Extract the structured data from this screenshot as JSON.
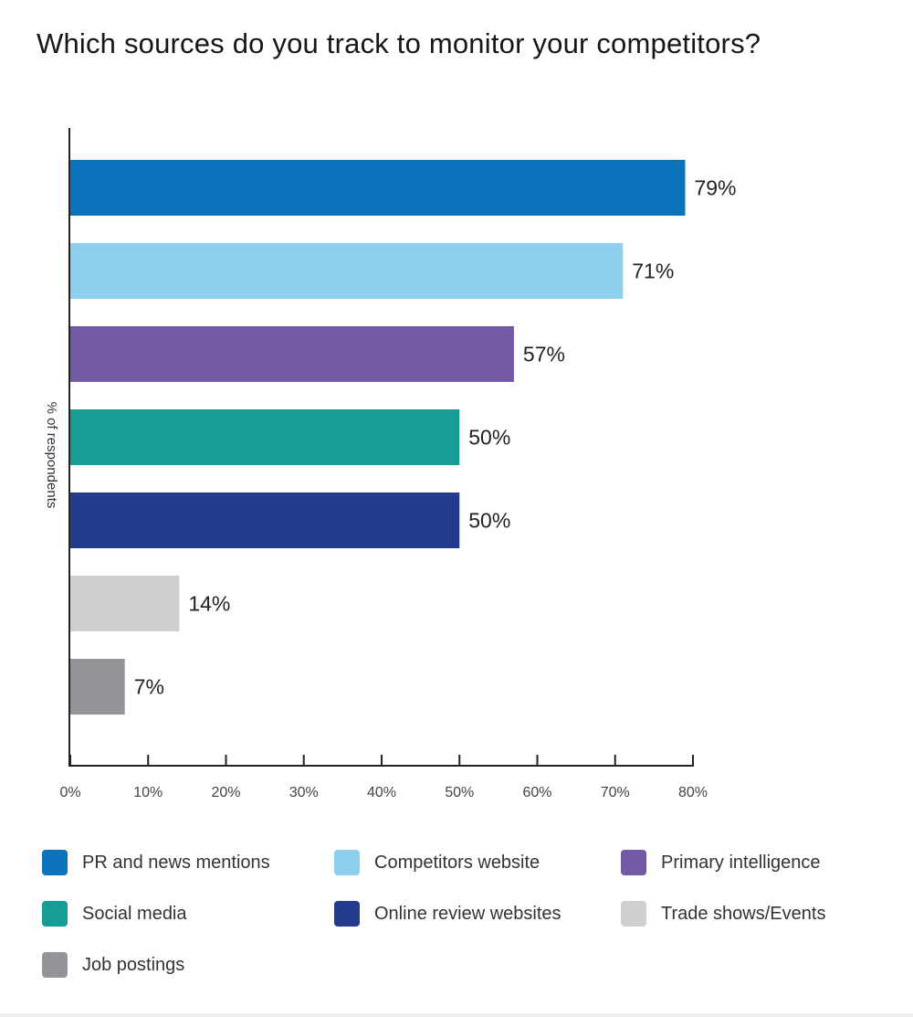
{
  "chart_data": {
    "type": "bar",
    "orientation": "horizontal",
    "title": "Which sources do you track to monitor your competitors?",
    "ylabel": "% of respondents",
    "xlabel": "",
    "xlim": [
      0,
      80
    ],
    "x_ticks": [
      "0%",
      "10%",
      "20%",
      "30%",
      "40%",
      "50%",
      "60%",
      "70%",
      "80%"
    ],
    "grid": false,
    "legend_position": "bottom",
    "categories": [
      "PR and news mentions",
      "Competitors website",
      "Primary intelligence",
      "Social media",
      "Online review websites",
      "Trade shows/Events",
      "Job postings"
    ],
    "values": [
      79,
      71,
      57,
      50,
      50,
      14,
      7
    ],
    "value_labels": [
      "79%",
      "71%",
      "57%",
      "50%",
      "50%",
      "14%",
      "7%"
    ],
    "colors": [
      "#0b72bb",
      "#8ecfef",
      "#735aa6",
      "#179d97",
      "#233a8f",
      "#cfcfcf",
      "#939598"
    ]
  }
}
